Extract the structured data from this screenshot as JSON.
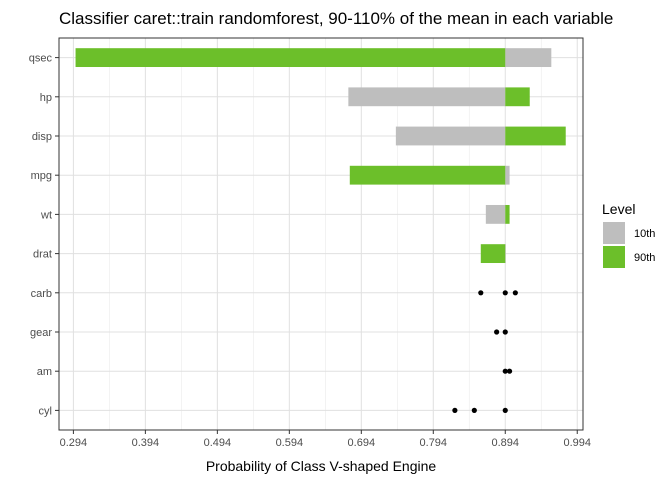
{
  "chart_data": {
    "type": "bar",
    "title": "Classifier caret::train randomforest, 90-110% of the mean in each variable",
    "xlabel": "Probability of Class V-shaped Engine",
    "ylabel": "",
    "orientation": "horizontal",
    "baseline": 0.894,
    "xlim": [
      0.274,
      1.002
    ],
    "x_ticks": [
      "0.294",
      "0.394",
      "0.494",
      "0.594",
      "0.694",
      "0.794",
      "0.894",
      "0.994"
    ],
    "x_tick_values": [
      0.294,
      0.394,
      0.494,
      0.594,
      0.694,
      0.794,
      0.894,
      0.994
    ],
    "grid": true,
    "legend_position": "right",
    "legend_title": "Level",
    "categories": [
      "qsec",
      "hp",
      "disp",
      "mpg",
      "wt",
      "drat",
      "carb",
      "gear",
      "am",
      "cyl"
    ],
    "series": [
      {
        "name": "10th",
        "color": "#bebebe",
        "values": [
          0.958,
          0.676,
          0.742,
          0.9,
          0.867,
          0.894,
          null,
          null,
          null,
          null
        ]
      },
      {
        "name": "90th",
        "color": "#6cbf2a",
        "values": [
          0.297,
          0.928,
          0.978,
          0.678,
          0.9,
          0.86,
          null,
          null,
          null,
          null
        ]
      }
    ],
    "points": [
      {
        "category": "carb",
        "values": [
          0.86,
          0.894,
          0.908
        ]
      },
      {
        "category": "gear",
        "values": [
          0.882,
          0.894
        ]
      },
      {
        "category": "am",
        "values": [
          0.894,
          0.9
        ]
      },
      {
        "category": "cyl",
        "values": [
          0.824,
          0.851,
          0.894
        ]
      }
    ],
    "point_color": "#000000"
  }
}
